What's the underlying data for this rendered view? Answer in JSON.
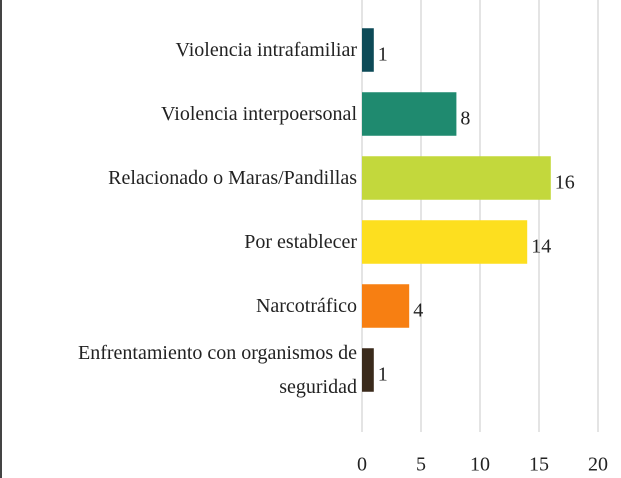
{
  "chart_data": {
    "type": "bar",
    "orientation": "horizontal",
    "categories": [
      "Violencia intrafamiliar",
      "Violencia interpoersonal",
      "Relacionado o Maras/Pandillas",
      "Por establecer",
      "Narcotráfico",
      "Enfrentamiento con organismos de seguridad"
    ],
    "values": [
      1,
      8,
      16,
      14,
      4,
      1
    ],
    "colors": [
      "#0d4a57",
      "#1f8a6f",
      "#c3d83c",
      "#fddf1f",
      "#f77f12",
      "#3a2a1b"
    ],
    "xlim": [
      0,
      20
    ],
    "xticks": [
      0,
      5,
      10,
      15,
      20
    ],
    "grid": true
  }
}
